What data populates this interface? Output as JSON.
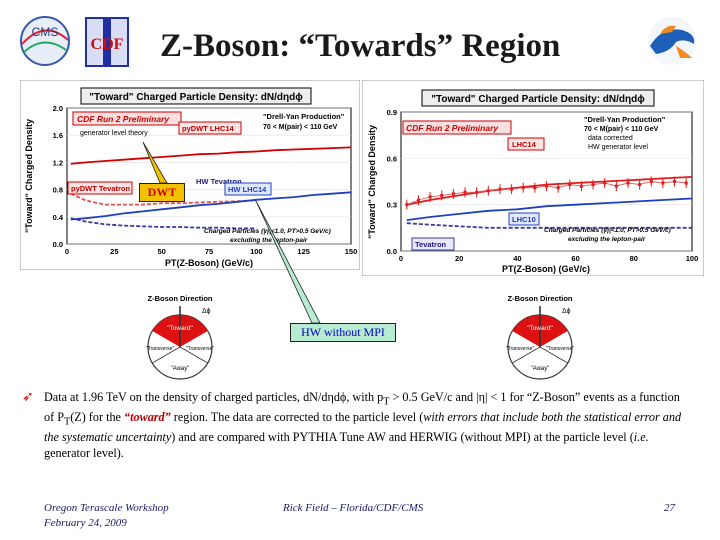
{
  "title": "Z-Boson: “Towards” Region",
  "logos": {
    "left1": "CMS",
    "left2": "CDF"
  },
  "chart_data": [
    {
      "type": "line",
      "title": "\"Toward\" Charged Particle Density: dN/dηdϕ",
      "xlabel": "PT(Z-Boson)  (GeV/c)",
      "ylabel": "\"Toward\" Charged Density",
      "xlim": [
        0,
        150
      ],
      "ylim": [
        0.0,
        2.0
      ],
      "xticks": [
        "0",
        "25",
        "50",
        "75",
        "100",
        "125",
        "150"
      ],
      "yticks": [
        "0.0",
        "0.4",
        "0.8",
        "1.2",
        "1.6",
        "2.0"
      ],
      "labels": {
        "cdf": "CDF Run 2 Preliminary",
        "gen": "generator level theory",
        "pydwt_lhc": "pyDWT LHC14",
        "dy": "\"Drell-Yan Production\"",
        "mass": "70 < M(pair) < 110 GeV",
        "pydwt_tev": "pyDWT Tevatron",
        "hw_tev": "HW Tevatron",
        "hw_lhc": "HW LHC14",
        "cuts": "Charged Particles (|η|<1.0, PT>0.5 GeV/c)",
        "excl": "excluding the lepton-pair"
      },
      "series": [
        {
          "name": "pyDWT LHC14",
          "color": "#d40000",
          "x": [
            2,
            10,
            20,
            30,
            40,
            50,
            60,
            70,
            80,
            90,
            100,
            110,
            120,
            130,
            140,
            150
          ],
          "y": [
            1.18,
            1.2,
            1.22,
            1.24,
            1.26,
            1.28,
            1.3,
            1.32,
            1.33,
            1.35,
            1.36,
            1.38,
            1.39,
            1.4,
            1.41,
            1.42
          ]
        },
        {
          "name": "pyDWT Tevatron",
          "color": "#e05050",
          "x": [
            2,
            10,
            20,
            30,
            40,
            50,
            60,
            70,
            80,
            90,
            100
          ],
          "y": [
            0.74,
            0.64,
            0.58,
            0.58,
            0.58,
            0.6,
            0.6,
            0.61,
            0.62,
            0.63,
            0.64
          ]
        },
        {
          "name": "HW LHC14",
          "color": "#1f3fbf",
          "x": [
            2,
            10,
            20,
            30,
            40,
            50,
            60,
            70,
            80,
            90,
            100,
            110,
            120,
            130,
            140,
            150
          ],
          "y": [
            0.36,
            0.38,
            0.41,
            0.45,
            0.48,
            0.51,
            0.54,
            0.57,
            0.59,
            0.62,
            0.65,
            0.67,
            0.69,
            0.72,
            0.74,
            0.76
          ]
        },
        {
          "name": "HW Tevatron",
          "color": "#3a3aa0",
          "x": [
            2,
            10,
            20,
            30,
            40,
            50,
            60,
            70,
            80,
            90,
            100
          ],
          "y": [
            0.38,
            0.33,
            0.29,
            0.27,
            0.26,
            0.25,
            0.25,
            0.24,
            0.24,
            0.23,
            0.23
          ]
        }
      ]
    },
    {
      "type": "line",
      "title": "\"Toward\" Charged Particle Density: dN/dηdϕ",
      "xlabel": "PT(Z-Boson)  (GeV/c)",
      "ylabel": "\"Toward\" Charged Density",
      "xlim": [
        0,
        100
      ],
      "ylim": [
        0.0,
        0.9
      ],
      "xticks": [
        "0",
        "20",
        "40",
        "60",
        "80",
        "100"
      ],
      "yticks": [
        "0.0",
        "0.3",
        "0.6",
        "0.9"
      ],
      "labels": {
        "cdf": "CDF Run 2 Preliminary",
        "dy": "\"Drell-Yan Production\"",
        "mass": "70 < M(pair) < 110 GeV",
        "corr": "data corrected",
        "hw": "HW generator level",
        "lhc14": "LHC14",
        "lhc10": "LHC10",
        "tev": "Tevatron",
        "cuts": "Charged Particles (|η|<1.0, PT>0.5 GeV/c)",
        "excl": "excluding the lepton-pair"
      },
      "series": [
        {
          "name": "LHC14",
          "color": "#e41a1c",
          "x": [
            2,
            10,
            20,
            30,
            40,
            50,
            60,
            70,
            80,
            90,
            100
          ],
          "y": [
            0.3,
            0.33,
            0.36,
            0.39,
            0.41,
            0.43,
            0.44,
            0.45,
            0.46,
            0.47,
            0.48
          ]
        },
        {
          "name": "Tevatron data",
          "color": "#d06060",
          "x": [
            2,
            6,
            10,
            14,
            18,
            22,
            26,
            30,
            34,
            38,
            42,
            46,
            50,
            54,
            58,
            62,
            66,
            70,
            74,
            78,
            82,
            86,
            90,
            94,
            98
          ],
          "y": [
            0.3,
            0.33,
            0.35,
            0.36,
            0.37,
            0.38,
            0.38,
            0.39,
            0.4,
            0.4,
            0.41,
            0.41,
            0.42,
            0.41,
            0.43,
            0.42,
            0.43,
            0.44,
            0.42,
            0.44,
            0.43,
            0.45,
            0.44,
            0.45,
            0.44
          ]
        },
        {
          "name": "LHC10",
          "color": "#1f3fbf",
          "x": [
            2,
            10,
            20,
            30,
            40,
            50,
            60,
            70,
            80,
            90,
            100
          ],
          "y": [
            0.2,
            0.22,
            0.24,
            0.26,
            0.27,
            0.29,
            0.3,
            0.31,
            0.32,
            0.33,
            0.34
          ]
        },
        {
          "name": "Tevatron",
          "color": "#3a3aa0",
          "x": [
            2,
            10,
            20,
            30,
            40,
            50,
            60,
            70,
            80,
            90,
            100
          ],
          "y": [
            0.18,
            0.17,
            0.16,
            0.15,
            0.15,
            0.15,
            0.15,
            0.15,
            0.15,
            0.15,
            0.15
          ]
        }
      ]
    }
  ],
  "diagram": {
    "title": "Z-Boson Direction",
    "angle": "Δϕ",
    "toward": "\"Toward\"",
    "transverse": "\"Transverse\"",
    "away": "\"Away\""
  },
  "callouts": {
    "dwt": "DWT",
    "hw": "HW without MPI"
  },
  "paragraph": {
    "part1": "Data at 1.96 TeV on the density of charged particles, dN/dηdϕ, with p",
    "sub1": "T",
    "part2": " > 0.5 GeV/c and |η| < 1 for “Z-Boson” events as a function of P",
    "sub2": "T",
    "part3": "(Z) for the ",
    "highlight": "“toward”",
    "part4": " region. The data are corrected to the particle level (",
    "italic1": "with errors that include both the statistical error and the systematic uncertainty",
    "part5": ") and are compared with PYTHIA Tune AW and HERWIG (without MPI) at the particle level (",
    "italic2": "i.e.",
    "part6": " generator level)."
  },
  "footer": {
    "workshop": "Oregon Terascale Workshop",
    "date": "February 24, 2009",
    "author": "Rick Field – Florida/CDF/CMS",
    "page": "27"
  },
  "colors": {
    "title_bar": "#1a1a1a",
    "accent_red": "#cc0000",
    "hw_blue": "#1f3fbf"
  }
}
